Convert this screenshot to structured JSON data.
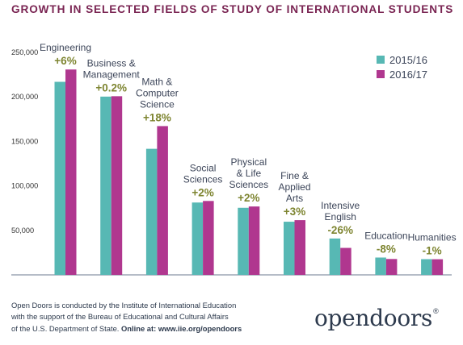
{
  "title": "GROWTH IN SELECTED FIELDS OF STUDY OF INTERNATIONAL STUDENTS",
  "colors": {
    "series_2015": "#57b8b4",
    "series_2016": "#b0378f",
    "title": "#7a2553",
    "pct": "#7e8531"
  },
  "chart_data": {
    "type": "bar",
    "title": "GROWTH IN SELECTED FIELDS OF STUDY OF INTERNATIONAL STUDENTS",
    "xlabel": "",
    "ylabel": "",
    "ylim": [
      0,
      250000
    ],
    "yticks": [
      50000,
      100000,
      150000,
      200000,
      250000
    ],
    "ytick_labels": [
      "50,000",
      "100,000",
      "150,000",
      "200,000",
      "250,000"
    ],
    "grid": false,
    "legend_position": "top-right",
    "categories": [
      {
        "lines": [
          "Engineering"
        ],
        "change": "+6%"
      },
      {
        "lines": [
          "Business &",
          "Management"
        ],
        "change": "+0.2%"
      },
      {
        "lines": [
          "Math &",
          "Computer",
          "Science"
        ],
        "change": "+18%"
      },
      {
        "lines": [
          "Social",
          "Sciences"
        ],
        "change": "+2%"
      },
      {
        "lines": [
          "Physical",
          "& Life",
          "Sciences"
        ],
        "change": "+2%"
      },
      {
        "lines": [
          "Fine &",
          "Applied",
          "Arts"
        ],
        "change": "+3%"
      },
      {
        "lines": [
          "Intensive",
          "English"
        ],
        "change": "-26%"
      },
      {
        "lines": [
          "Education"
        ],
        "change": "-8%"
      },
      {
        "lines": [
          "Humanities"
        ],
        "change": "-1%"
      }
    ],
    "series": [
      {
        "name": "2015/16",
        "values": [
          216932,
          200312,
          141651,
          81304,
          75385,
          59736,
          40877,
          19483,
          17664
        ]
      },
      {
        "name": "2016/17",
        "values": [
          230780,
          200754,
          167180,
          83046,
          76838,
          61506,
          30309,
          17843,
          17561
        ]
      }
    ]
  },
  "footer": {
    "line1": "Open Doors is conducted by the Institute of International Education",
    "line2": "with the support of the Bureau of Educational and Cultural Affairs",
    "line3_plain": "of the U.S. Department of State. ",
    "line3_bold": "Online at: www.iie.org/opendoors"
  },
  "logo": {
    "part1": "open",
    "part2": "doors",
    "mark": "®"
  }
}
